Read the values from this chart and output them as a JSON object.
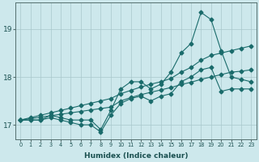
{
  "xlabel": "Humidex (Indice chaleur)",
  "bg_color": "#cde8ec",
  "grid_color": "#a8c8cc",
  "line_color": "#1a6b6b",
  "x": [
    0,
    1,
    2,
    3,
    4,
    5,
    6,
    7,
    8,
    9,
    10,
    11,
    12,
    13,
    14,
    15,
    16,
    17,
    18,
    19,
    20,
    21,
    22,
    23
  ],
  "line_min": [
    17.1,
    17.1,
    17.1,
    17.15,
    17.1,
    17.05,
    17.0,
    17.0,
    16.85,
    17.2,
    17.45,
    17.55,
    17.6,
    17.5,
    17.6,
    17.65,
    17.9,
    18.0,
    18.15,
    18.2,
    17.7,
    17.75,
    17.75,
    17.75
  ],
  "line_max": [
    17.1,
    17.1,
    17.1,
    17.2,
    17.15,
    17.1,
    17.1,
    17.1,
    16.9,
    17.3,
    17.75,
    17.9,
    17.9,
    17.75,
    17.85,
    18.1,
    18.5,
    18.7,
    19.35,
    19.2,
    18.55,
    18.0,
    17.95,
    17.9
  ],
  "line_trend1": [
    17.1,
    17.13,
    17.16,
    17.19,
    17.22,
    17.25,
    17.28,
    17.31,
    17.34,
    17.37,
    17.5,
    17.57,
    17.63,
    17.68,
    17.73,
    17.78,
    17.84,
    17.89,
    17.95,
    18.0,
    18.05,
    18.1,
    18.12,
    18.15
  ],
  "line_trend2": [
    17.1,
    17.15,
    17.2,
    17.25,
    17.3,
    17.35,
    17.4,
    17.45,
    17.5,
    17.55,
    17.65,
    17.72,
    17.79,
    17.85,
    17.9,
    17.97,
    18.1,
    18.2,
    18.35,
    18.45,
    18.5,
    18.55,
    18.6,
    18.65
  ],
  "ylim": [
    16.7,
    19.55
  ],
  "yticks": [
    17,
    18,
    19
  ],
  "xticks": [
    0,
    1,
    2,
    3,
    4,
    5,
    6,
    7,
    8,
    9,
    10,
    11,
    12,
    13,
    14,
    15,
    16,
    17,
    18,
    19,
    20,
    21,
    22,
    23
  ],
  "markersize": 2.5
}
